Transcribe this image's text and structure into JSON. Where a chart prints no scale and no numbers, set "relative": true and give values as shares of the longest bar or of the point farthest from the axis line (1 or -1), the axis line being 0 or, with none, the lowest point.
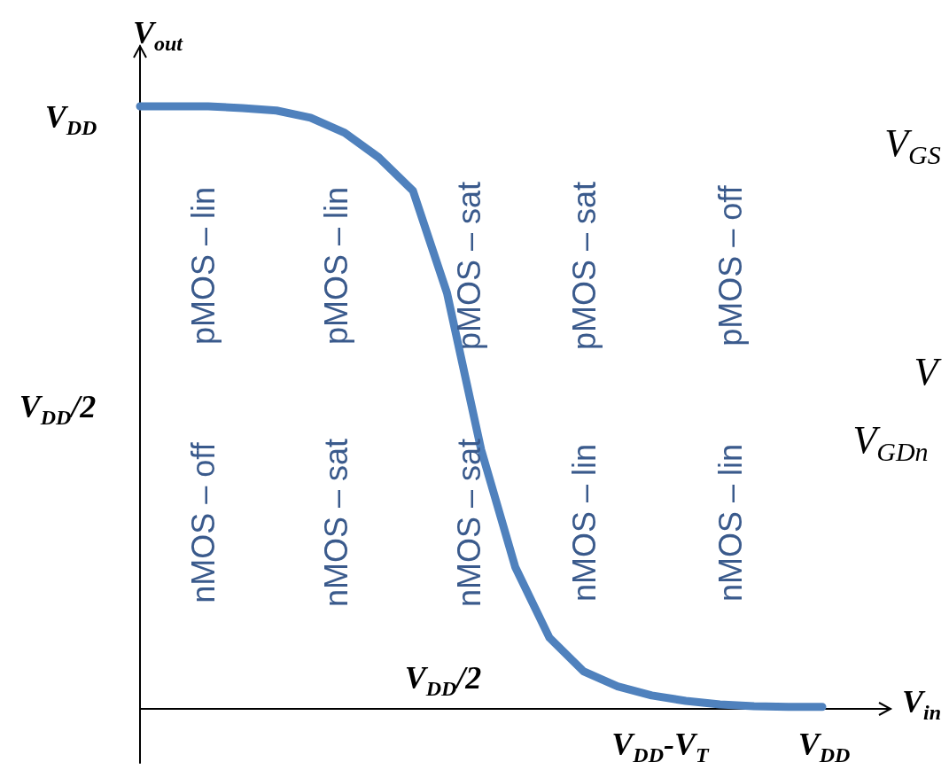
{
  "chart_data": {
    "type": "line",
    "relative": true,
    "xlabel": "V$_{in}$",
    "ylabel": "V$_{out}$",
    "categories": [
      null,
      null,
      null,
      null,
      null,
      null,
      null,
      null,
      null,
      null,
      null,
      null,
      null,
      null,
      null,
      null,
      null,
      null,
      null,
      null,
      null,
      null,
      null
    ],
    "series": [
      {
        "color": "#4f81bd",
        "values": [
          1.0,
          1.0,
          1.0,
          0.997,
          0.993,
          0.981,
          0.956,
          0.915,
          0.86,
          0.69,
          0.43,
          0.235,
          0.118,
          0.062,
          0.037,
          0.022,
          0.013,
          0.007,
          0.004,
          0.003,
          0.003,
          null,
          null
        ]
      }
    ],
    "marker": "none",
    "line_style": "solid",
    "annotations": [
      "nMOS – off",
      "pMOS – lin",
      "nMOS – sat",
      "pMOS – lin",
      "nMOS – sat",
      "pMOS – sat",
      "nMOS – lin",
      "pMOS – sat",
      "nMOS – lin",
      "pMOS – off",
      "V$_{GS}$",
      "V",
      "V$_{GDn}$",
      "V$_{DD}$",
      "V$_{DD}$/2",
      "V$_{DD}$/2",
      "V$_{DD}$-V$_{T}$",
      "V$_{DD}$"
    ]
  }
}
